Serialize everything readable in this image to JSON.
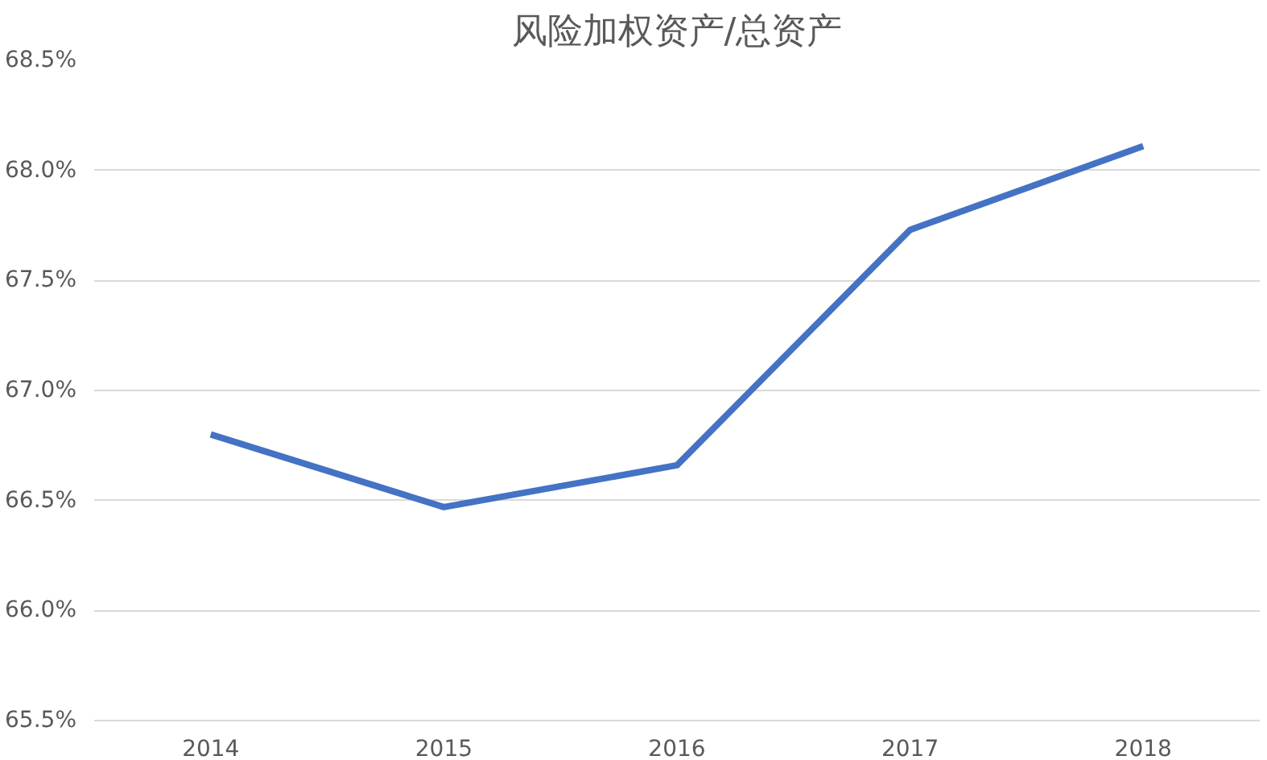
{
  "chart_data": {
    "type": "line",
    "title": "风险加权资产/总资产",
    "categories": [
      "2014",
      "2015",
      "2016",
      "2017",
      "2018"
    ],
    "series": [
      {
        "color": "#4472c4",
        "values": [
          66.8,
          66.47,
          66.66,
          67.73,
          68.11
        ]
      }
    ],
    "ylim": [
      65.5,
      68.5
    ],
    "yticks": [
      {
        "value": 65.5,
        "label": "65.5%"
      },
      {
        "value": 66.0,
        "label": "66.0%"
      },
      {
        "value": 66.5,
        "label": "66.5%"
      },
      {
        "value": 67.0,
        "label": "67.0%"
      },
      {
        "value": 67.5,
        "label": "67.5%"
      },
      {
        "value": 68.0,
        "label": "68.0%"
      },
      {
        "value": 68.5,
        "label": "68.5%"
      }
    ],
    "grid": "y",
    "marker": "none",
    "line_style": "solid"
  }
}
